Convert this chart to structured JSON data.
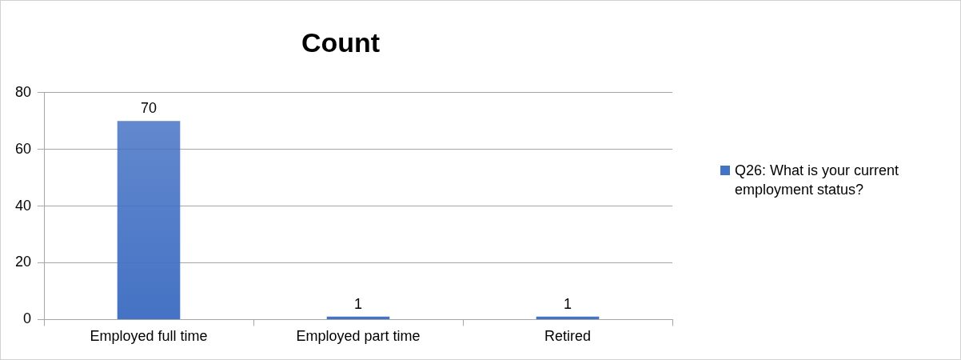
{
  "chart_data": {
    "type": "bar",
    "title": "Count",
    "categories": [
      "Employed full time",
      "Employed part time",
      "Retired"
    ],
    "series": [
      {
        "name": "Q26: What is your current employment status?",
        "color": "#4472c4",
        "values": [
          70,
          1,
          1
        ]
      }
    ],
    "ylim": [
      0,
      80
    ],
    "yticks": [
      0,
      20,
      40,
      60,
      80
    ],
    "grid": "y",
    "legend": "right",
    "data_labels": true
  }
}
